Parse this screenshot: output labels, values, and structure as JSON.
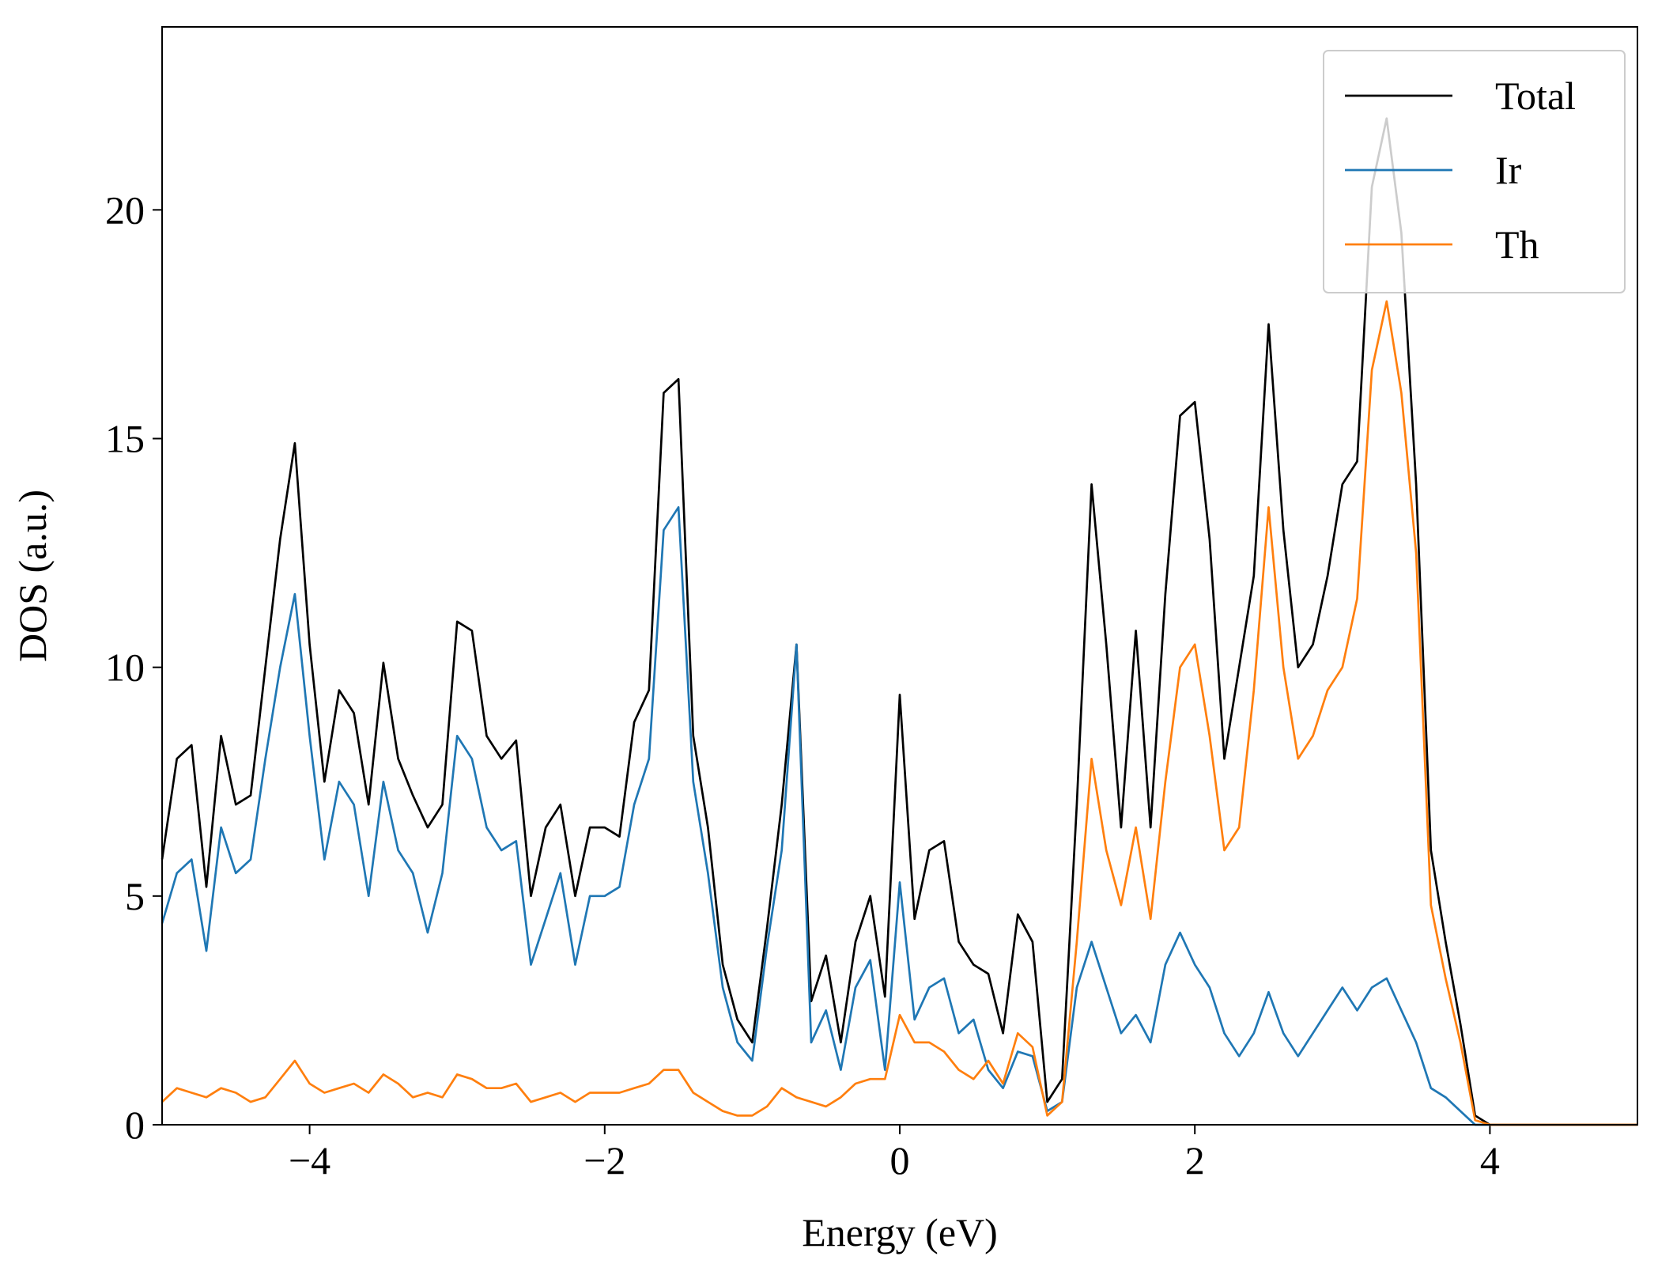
{
  "chart_data": {
    "type": "line",
    "x_label": "Energy (eV)",
    "y_label": "DOS (a.u.)",
    "xlim": [
      -5,
      5
    ],
    "ylim": [
      0,
      24
    ],
    "xticks": [
      {
        "value": -4,
        "label": "−4"
      },
      {
        "value": -2,
        "label": "−2"
      },
      0,
      2,
      4
    ],
    "yticks": [
      0,
      5,
      10,
      15,
      20
    ],
    "legend": "upper right",
    "x": [
      -5.0,
      -4.9,
      -4.8,
      -4.7,
      -4.6,
      -4.5,
      -4.4,
      -4.3,
      -4.2,
      -4.1,
      -4.0,
      -3.9,
      -3.8,
      -3.7,
      -3.6,
      -3.5,
      -3.4,
      -3.3,
      -3.2,
      -3.1,
      -3.0,
      -2.9,
      -2.8,
      -2.7,
      -2.6,
      -2.5,
      -2.4,
      -2.3,
      -2.2,
      -2.1,
      -2.0,
      -1.9,
      -1.8,
      -1.7,
      -1.6,
      -1.5,
      -1.4,
      -1.3,
      -1.2,
      -1.1,
      -1.0,
      -0.9,
      -0.8,
      -0.7,
      -0.6,
      -0.5,
      -0.4,
      -0.3,
      -0.2,
      -0.1,
      0.0,
      0.1,
      0.2,
      0.3,
      0.4,
      0.5,
      0.6,
      0.7,
      0.8,
      0.9,
      1.0,
      1.1,
      1.2,
      1.3,
      1.4,
      1.5,
      1.6,
      1.7,
      1.8,
      1.9,
      2.0,
      2.1,
      2.2,
      2.3,
      2.4,
      2.5,
      2.6,
      2.7,
      2.8,
      2.9,
      3.0,
      3.1,
      3.2,
      3.3,
      3.4,
      3.5,
      3.6,
      3.7,
      3.8,
      3.9,
      4.0,
      4.1,
      4.2,
      4.3,
      4.4,
      4.5,
      4.6,
      4.7,
      4.8,
      4.9,
      5.0
    ],
    "series": [
      {
        "name": "Total",
        "color": "#000000",
        "values": [
          5.8,
          8.0,
          8.3,
          5.2,
          8.5,
          7.0,
          7.2,
          10.0,
          12.8,
          14.9,
          10.5,
          7.5,
          9.5,
          9.0,
          7.0,
          10.1,
          8.0,
          7.2,
          6.5,
          7.0,
          11.0,
          10.8,
          8.5,
          8.0,
          8.4,
          5.0,
          6.5,
          7.0,
          5.0,
          6.5,
          6.5,
          6.3,
          8.8,
          9.5,
          16.0,
          16.3,
          8.5,
          6.5,
          3.5,
          2.3,
          1.8,
          4.3,
          7.0,
          10.5,
          2.7,
          3.7,
          1.8,
          4.0,
          5.0,
          2.8,
          9.4,
          4.5,
          6.0,
          6.2,
          4.0,
          3.5,
          3.3,
          2.0,
          4.6,
          4.0,
          0.5,
          1.0,
          7.0,
          14.0,
          10.5,
          6.5,
          10.8,
          6.5,
          11.6,
          15.5,
          15.8,
          12.8,
          8.0,
          10.0,
          12.0,
          17.5,
          13.0,
          10.0,
          10.5,
          12.0,
          14.0,
          14.5,
          20.5,
          22.0,
          19.5,
          14.0,
          6.0,
          4.0,
          2.2,
          0.2,
          0,
          0,
          0,
          0,
          0,
          0,
          0,
          0,
          0,
          0,
          0
        ]
      },
      {
        "name": "Ir",
        "color": "#1f77b4",
        "values": [
          4.4,
          5.5,
          5.8,
          3.8,
          6.5,
          5.5,
          5.8,
          8.0,
          10.0,
          11.6,
          8.5,
          5.8,
          7.5,
          7.0,
          5.0,
          7.5,
          6.0,
          5.5,
          4.2,
          5.5,
          8.5,
          8.0,
          6.5,
          6.0,
          6.2,
          3.5,
          4.5,
          5.5,
          3.5,
          5.0,
          5.0,
          5.2,
          7.0,
          8.0,
          13.0,
          13.5,
          7.5,
          5.5,
          3.0,
          1.8,
          1.4,
          3.9,
          6.0,
          10.5,
          1.8,
          2.5,
          1.2,
          3.0,
          3.6,
          1.2,
          5.3,
          2.3,
          3.0,
          3.2,
          2.0,
          2.3,
          1.2,
          0.8,
          1.6,
          1.5,
          0.3,
          0.5,
          3.0,
          4.0,
          3.0,
          2.0,
          2.4,
          1.8,
          3.5,
          4.2,
          3.5,
          3.0,
          2.0,
          1.5,
          2.0,
          2.9,
          2.0,
          1.5,
          2.0,
          2.5,
          3.0,
          2.5,
          3.0,
          3.2,
          2.5,
          1.8,
          0.8,
          0.6,
          0.3,
          0,
          0,
          0,
          0,
          0,
          0,
          0,
          0,
          0,
          0,
          0,
          0
        ]
      },
      {
        "name": "Th",
        "color": "#ff7f0e",
        "values": [
          0.5,
          0.8,
          0.7,
          0.6,
          0.8,
          0.7,
          0.5,
          0.6,
          1.0,
          1.4,
          0.9,
          0.7,
          0.8,
          0.9,
          0.7,
          1.1,
          0.9,
          0.6,
          0.7,
          0.6,
          1.1,
          1.0,
          0.8,
          0.8,
          0.9,
          0.5,
          0.6,
          0.7,
          0.5,
          0.7,
          0.7,
          0.7,
          0.8,
          0.9,
          1.2,
          1.2,
          0.7,
          0.5,
          0.3,
          0.2,
          0.2,
          0.4,
          0.8,
          0.6,
          0.5,
          0.4,
          0.6,
          0.9,
          1.0,
          1.0,
          2.4,
          1.8,
          1.8,
          1.6,
          1.2,
          1.0,
          1.4,
          0.9,
          2.0,
          1.7,
          0.2,
          0.5,
          4.0,
          8.0,
          6.0,
          4.8,
          6.5,
          4.5,
          7.5,
          10.0,
          10.5,
          8.5,
          6.0,
          6.5,
          9.5,
          13.5,
          10.0,
          8.0,
          8.5,
          9.5,
          10.0,
          11.5,
          16.5,
          18.0,
          16.0,
          12.5,
          4.8,
          3.2,
          1.8,
          0.1,
          0,
          0,
          0,
          0,
          0,
          0,
          0,
          0,
          0,
          0,
          0
        ]
      }
    ]
  }
}
